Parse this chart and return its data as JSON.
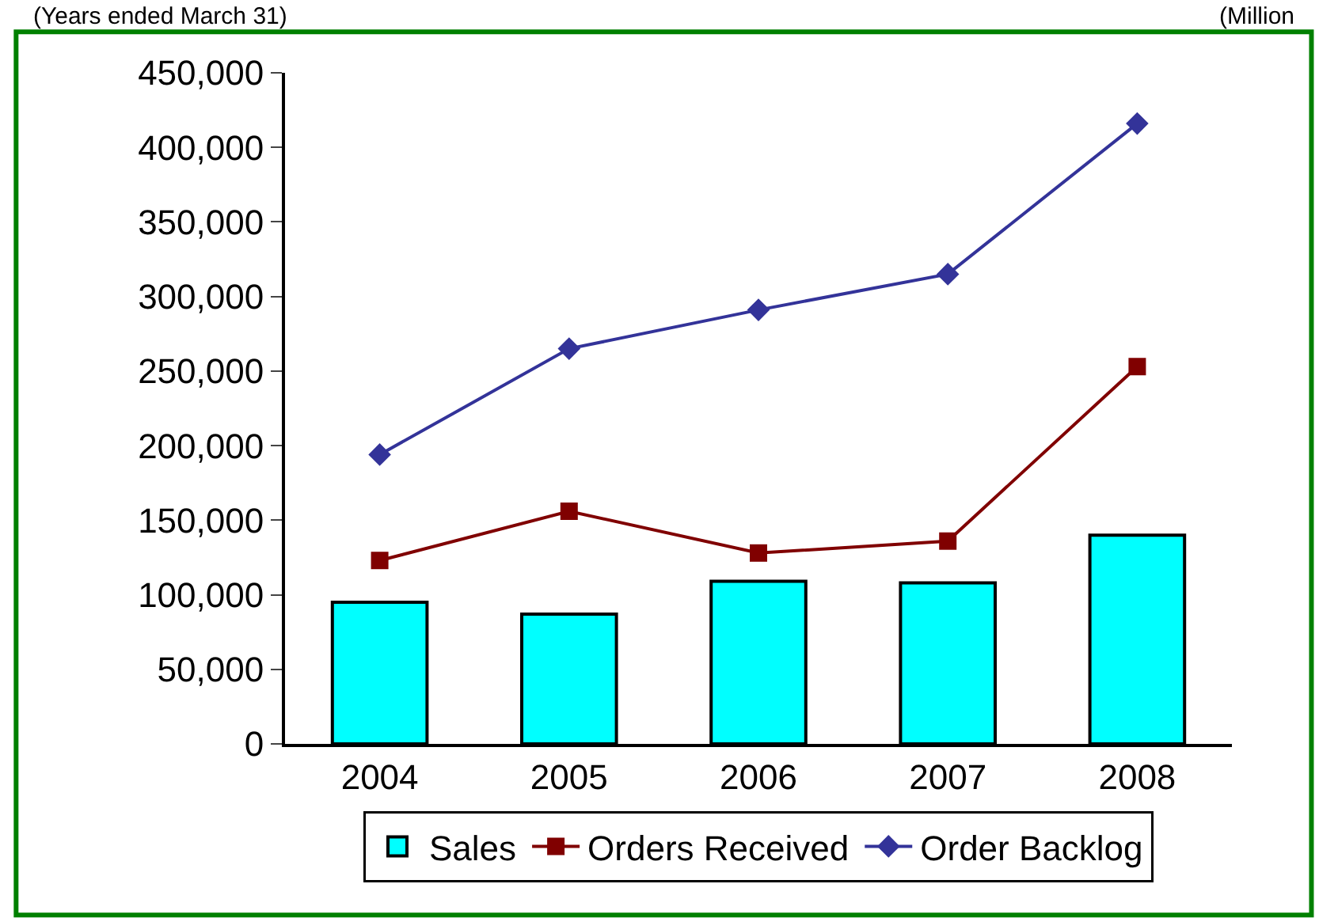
{
  "chart_data": {
    "type": "bar",
    "categories": [
      "2004",
      "2005",
      "2006",
      "2007",
      "2008"
    ],
    "annotations": [
      "(Years ended March 31)",
      "(Million"
    ],
    "series": [
      {
        "name": "Sales",
        "color": "#00ffff",
        "values": [
          95000,
          87000,
          109000,
          108000,
          140000
        ]
      },
      {
        "name": "Orders Received",
        "type": "line",
        "color": "#800000",
        "marker": "square",
        "values": [
          123000,
          156000,
          128000,
          136000,
          253000
        ]
      },
      {
        "name": "Order Backlog",
        "type": "line",
        "color": "#333399",
        "marker": "diamond",
        "values": [
          194000,
          265000,
          291000,
          315000,
          416000
        ]
      }
    ],
    "ylim": [
      0,
      450000
    ],
    "yticks": [
      0,
      {
        "value": 50000,
        "label": "50,000"
      },
      {
        "value": 100000,
        "label": "100,000"
      },
      {
        "value": 150000,
        "label": "150,000"
      },
      {
        "value": 200000,
        "label": "200,000"
      },
      {
        "value": 250000,
        "label": "250,000"
      },
      {
        "value": 300000,
        "label": "300,000"
      },
      {
        "value": 350000,
        "label": "350,000"
      },
      {
        "value": 400000,
        "label": "400,000"
      },
      {
        "value": 450000,
        "label": "450,000"
      }
    ],
    "grid": false,
    "legend": "bottom"
  }
}
